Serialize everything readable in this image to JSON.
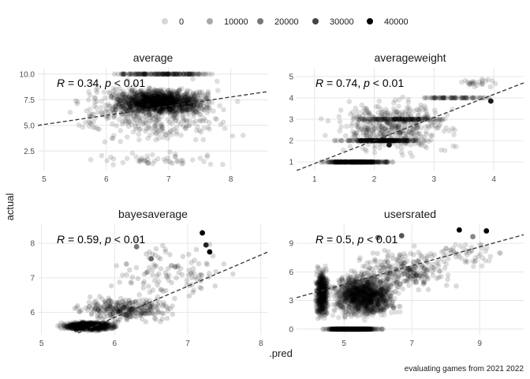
{
  "caption": "evaluating games from  2021 2022",
  "legend": {
    "entries": [
      {
        "label": "0",
        "shade": "#d6d6d6"
      },
      {
        "label": "10000",
        "shade": "#a9a9a9"
      },
      {
        "label": "20000",
        "shade": "#777777"
      },
      {
        "label": "30000",
        "shade": "#444444"
      },
      {
        "label": "40000",
        "shade": "#000000"
      }
    ]
  },
  "chart_data": {
    "type": "scatter",
    "xlabel": ".pred",
    "ylabel": "actual",
    "point_color": "#000000",
    "fit_line": "dashed",
    "facets": [
      {
        "title": "average",
        "xlim": [
          4.9,
          8.6
        ],
        "ylim": [
          0.6,
          10.6
        ],
        "xticks": [
          5,
          6,
          7,
          8
        ],
        "yticks": [
          2.5,
          5.0,
          7.5,
          10.0
        ],
        "ytick_labels": [
          "2.5",
          "5.0",
          "7.5",
          "10.0"
        ],
        "annotation": {
          "r": "0.34",
          "p": "0.01"
        },
        "fit": [
          [
            4.9,
            5.0
          ],
          [
            8.6,
            8.3
          ]
        ],
        "clusters": [
          {
            "x": [
              5.9,
              7.8
            ],
            "y": [
              5.8,
              8.8
            ],
            "n": 1400,
            "alpha": 0.12
          },
          {
            "x": [
              5.1,
              8.4
            ],
            "y": [
              2.5,
              10.0
            ],
            "n": 450,
            "alpha": 0.13
          },
          {
            "x": [
              5.8,
              8.0
            ],
            "y": [
              10.0,
              10.0
            ],
            "n": 160,
            "alpha": 0.15
          },
          {
            "x": [
              5.6,
              8.0
            ],
            "y": [
              0.9,
              2.5
            ],
            "n": 50,
            "alpha": 0.13
          }
        ],
        "highlights": []
      },
      {
        "title": "averageweight",
        "xlim": [
          0.7,
          4.5
        ],
        "ylim": [
          0.6,
          5.4
        ],
        "xticks": [
          1,
          2,
          3,
          4
        ],
        "yticks": [
          1,
          2,
          3,
          4,
          5
        ],
        "ytick_labels": [
          "1",
          "2",
          "3",
          "4",
          "5"
        ],
        "annotation": {
          "r": "0.74",
          "p": "0.01"
        },
        "fit": [
          [
            0.7,
            0.6
          ],
          [
            4.5,
            4.7
          ]
        ],
        "clusters": [
          {
            "x": [
              1.0,
              2.4
            ],
            "y": [
              1.0,
              1.0
            ],
            "n": 350,
            "alpha": 0.14
          },
          {
            "x": [
              1.2,
              3.1
            ],
            "y": [
              2.0,
              2.0
            ],
            "n": 260,
            "alpha": 0.14
          },
          {
            "x": [
              1.5,
              3.4
            ],
            "y": [
              3.0,
              3.0
            ],
            "n": 140,
            "alpha": 0.13
          },
          {
            "x": [
              2.6,
              4.2
            ],
            "y": [
              4.0,
              4.0
            ],
            "n": 80,
            "alpha": 0.13
          },
          {
            "x": [
              1.0,
              3.6
            ],
            "y": [
              1.1,
              4.2
            ],
            "n": 450,
            "alpha": 0.13
          },
          {
            "x": [
              3.2,
              4.3
            ],
            "y": [
              4.4,
              5.0
            ],
            "n": 25,
            "alpha": 0.13
          }
        ],
        "highlights": [
          {
            "x": 2.25,
            "y": 1.8,
            "shade": "#1a1a1a"
          },
          {
            "x": 3.95,
            "y": 3.85,
            "shade": "#1a1a1a"
          }
        ]
      },
      {
        "title": "bayesaverage",
        "xlim": [
          4.95,
          8.1
        ],
        "ylim": [
          5.35,
          8.55
        ],
        "xticks": [
          5,
          6,
          7,
          8
        ],
        "yticks": [
          6,
          7,
          8
        ],
        "ytick_labels": [
          "6",
          "7",
          "8"
        ],
        "annotation": {
          "r": "0.59",
          "p": "0.01"
        },
        "fit": [
          [
            5.5,
            5.4
          ],
          [
            8.1,
            7.75
          ]
        ],
        "clusters": [
          {
            "x": [
              5.2,
              6.1
            ],
            "y": [
              5.45,
              5.75
            ],
            "n": 900,
            "alpha": 0.14
          },
          {
            "x": [
              5.3,
              7.0
            ],
            "y": [
              5.6,
              6.6
            ],
            "n": 300,
            "alpha": 0.15
          },
          {
            "x": [
              5.8,
              7.9
            ],
            "y": [
              6.2,
              8.2
            ],
            "n": 110,
            "alpha": 0.15
          }
        ],
        "highlights": [
          {
            "x": 7.2,
            "y": 8.3,
            "shade": "#000000"
          },
          {
            "x": 7.25,
            "y": 7.95,
            "shade": "#222222"
          },
          {
            "x": 7.3,
            "y": 7.75,
            "shade": "#000000"
          },
          {
            "x": 6.3,
            "y": 7.9,
            "shade": "#777777"
          },
          {
            "x": 6.5,
            "y": 7.55,
            "shade": "#666666"
          }
        ]
      },
      {
        "title": "usersrated",
        "xlim": [
          3.6,
          10.3
        ],
        "ylim": [
          -0.6,
          11.0
        ],
        "xticks": [
          5,
          7,
          9
        ],
        "yticks": [
          0,
          3,
          6,
          9
        ],
        "ytick_labels": [
          "0",
          "3",
          "6",
          "9"
        ],
        "annotation": {
          "r": "0.5",
          "p": "0.01"
        },
        "fit": [
          [
            3.6,
            3.3
          ],
          [
            10.3,
            9.9
          ]
        ],
        "clusters": [
          {
            "x": [
              4.3,
              6.2
            ],
            "y": [
              0.0,
              0.0
            ],
            "n": 700,
            "alpha": 0.14
          },
          {
            "x": [
              4.1,
              4.6
            ],
            "y": [
              0.5,
              7.0
            ],
            "n": 500,
            "alpha": 0.13
          },
          {
            "x": [
              4.4,
              6.8
            ],
            "y": [
              0.6,
              6.5
            ],
            "n": 1300,
            "alpha": 0.12
          },
          {
            "x": [
              5.0,
              8.5
            ],
            "y": [
              3.5,
              9.0
            ],
            "n": 260,
            "alpha": 0.14
          },
          {
            "x": [
              7.5,
              10.0
            ],
            "y": [
              6.0,
              9.5
            ],
            "n": 50,
            "alpha": 0.13
          }
        ],
        "highlights": [
          {
            "x": 8.4,
            "y": 10.4,
            "shade": "#000000"
          },
          {
            "x": 9.2,
            "y": 10.3,
            "shade": "#000000"
          },
          {
            "x": 6.7,
            "y": 9.8,
            "shade": "#555555"
          },
          {
            "x": 6.0,
            "y": 9.6,
            "shade": "#777777"
          },
          {
            "x": 8.8,
            "y": 9.7,
            "shade": "#888888"
          }
        ]
      }
    ]
  }
}
